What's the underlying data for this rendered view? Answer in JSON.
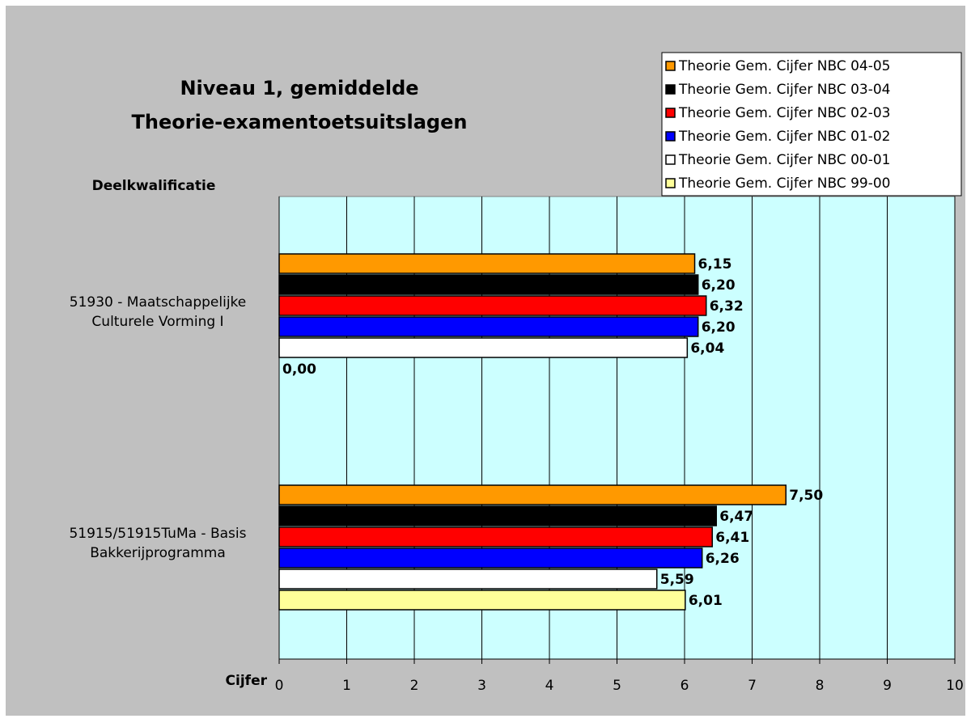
{
  "chart_data": {
    "type": "barh",
    "title": [
      "Niveau 1, gemiddelde",
      "Theorie-examentoetsuitslagen"
    ],
    "y_label": "Deelkwalificatie",
    "x_label": "Cijfer",
    "categories": [
      "51930 - Maatschappelijke Culturele Vorming I",
      "51915/51915TuMa - Basis Bakkerijprogramma"
    ],
    "series": [
      {
        "name": "Theorie Gem. Cijfer NBC 04-05",
        "color": "#ff9900",
        "values": [
          6.15,
          7.5
        ],
        "value_labels": [
          "6,15",
          "7,50"
        ]
      },
      {
        "name": "Theorie Gem. Cijfer NBC 03-04",
        "color": "#000000",
        "values": [
          6.2,
          6.47
        ],
        "value_labels": [
          "6,20",
          "6,47"
        ]
      },
      {
        "name": "Theorie Gem. Cijfer NBC 02-03",
        "color": "#ff0000",
        "values": [
          6.32,
          6.41
        ],
        "value_labels": [
          "6,32",
          "6,41"
        ]
      },
      {
        "name": "Theorie Gem. Cijfer NBC 01-02",
        "color": "#0000ff",
        "values": [
          6.2,
          6.26
        ],
        "value_labels": [
          "6,20",
          "6,26"
        ]
      },
      {
        "name": "Theorie Gem. Cijfer NBC 00-01",
        "color": "#ffffff",
        "values": [
          6.04,
          5.59
        ],
        "value_labels": [
          "6,04",
          "5,59"
        ]
      },
      {
        "name": "Theorie Gem. Cijfer NBC 99-00",
        "color": "#ffff99",
        "values": [
          0.0,
          6.01
        ],
        "value_labels": [
          "0,00",
          "6,01"
        ]
      }
    ],
    "xlim": [
      0,
      10
    ],
    "xticks": [
      0,
      1,
      2,
      3,
      4,
      5,
      6,
      7,
      8,
      9,
      10
    ],
    "grid": true,
    "legend": "top-right"
  }
}
